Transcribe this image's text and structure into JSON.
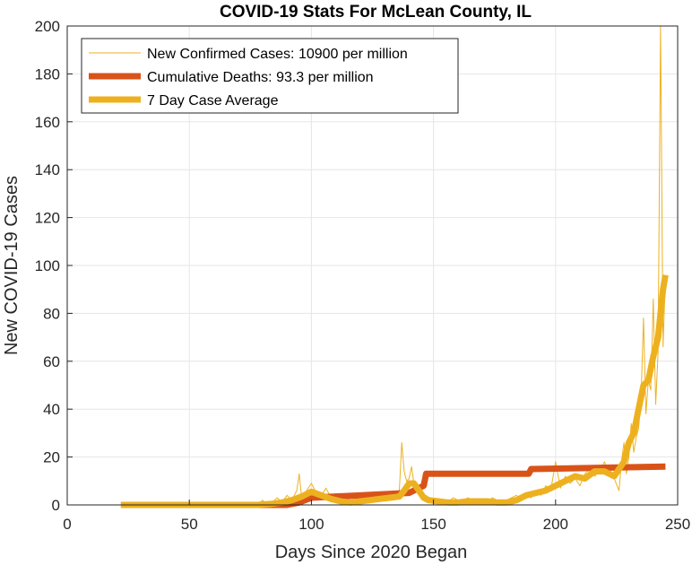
{
  "chart_data": {
    "type": "line",
    "title": "COVID-19 Stats For McLean County, IL",
    "xlabel": "Days Since 2020 Began",
    "ylabel": "New COVID-19 Cases",
    "xlim": [
      0,
      250
    ],
    "ylim": [
      0,
      200
    ],
    "xticks": [
      "0",
      "50",
      "100",
      "150",
      "200",
      "250"
    ],
    "yticks": [
      "0",
      "20",
      "40",
      "60",
      "80",
      "100",
      "120",
      "140",
      "160",
      "180",
      "200"
    ],
    "grid": true,
    "legend_position": "top-left",
    "series": [
      {
        "name": "New Confirmed Cases: 10900 per million",
        "color": "#EDB120",
        "style": "thin",
        "x": [
          22,
          40,
          60,
          78,
          80,
          82,
          84,
          86,
          88,
          90,
          92,
          94,
          95,
          96,
          98,
          100,
          102,
          104,
          106,
          108,
          110,
          112,
          114,
          116,
          118,
          120,
          122,
          124,
          126,
          128,
          130,
          132,
          134,
          136,
          137,
          138,
          139,
          140,
          141,
          142,
          143,
          144,
          145,
          146,
          147,
          148,
          150,
          152,
          154,
          156,
          158,
          160,
          162,
          164,
          166,
          168,
          170,
          172,
          174,
          176,
          178,
          180,
          182,
          184,
          186,
          188,
          190,
          192,
          194,
          196,
          198,
          200,
          202,
          204,
          206,
          208,
          210,
          212,
          214,
          216,
          218,
          220,
          222,
          224,
          226,
          227,
          228,
          229,
          230,
          231,
          232,
          233,
          234,
          235,
          236,
          237,
          238,
          239,
          240,
          241,
          242,
          243,
          244,
          245
        ],
        "y": [
          0,
          0,
          0,
          0,
          2,
          0,
          1,
          3,
          1,
          4,
          2,
          6,
          13,
          3,
          6,
          9,
          5,
          4,
          7,
          3,
          2,
          1,
          2,
          1,
          0,
          2,
          3,
          1,
          2,
          4,
          3,
          2,
          4,
          6,
          26,
          14,
          10,
          11,
          16,
          9,
          7,
          6,
          5,
          4,
          4,
          3,
          2,
          1,
          2,
          1,
          3,
          2,
          1,
          3,
          2,
          1,
          2,
          1,
          3,
          2,
          1,
          2,
          3,
          4,
          2,
          5,
          3,
          6,
          4,
          8,
          6,
          18,
          7,
          12,
          9,
          11,
          8,
          13,
          15,
          12,
          14,
          18,
          13,
          11,
          6,
          18,
          26,
          13,
          20,
          34,
          22,
          28,
          32,
          44,
          78,
          38,
          52,
          48,
          86,
          42,
          64,
          200,
          66,
          96
        ]
      },
      {
        "name": "Cumulative Deaths: 93.3 per million",
        "color": "#D95319",
        "style": "thick",
        "x": [
          22,
          90,
          95,
          100,
          140,
          146,
          147,
          189,
          190,
          245
        ],
        "y": [
          0,
          0,
          1,
          3,
          5,
          8,
          13,
          13,
          15,
          16
        ]
      },
      {
        "name": "7 Day Case Average",
        "color": "#EDB120",
        "style": "thick",
        "x": [
          22,
          78,
          84,
          88,
          92,
          96,
          100,
          104,
          108,
          112,
          116,
          120,
          124,
          128,
          132,
          136,
          138,
          140,
          142,
          144,
          146,
          148,
          152,
          156,
          160,
          164,
          168,
          172,
          176,
          180,
          184,
          188,
          192,
          196,
          200,
          204,
          208,
          212,
          216,
          220,
          224,
          228,
          230,
          232,
          234,
          236,
          238,
          240,
          242,
          243,
          244,
          245
        ],
        "y": [
          0,
          0,
          0.5,
          1,
          2,
          3.5,
          5.5,
          4,
          2.5,
          1.5,
          1,
          1.5,
          2,
          2.5,
          3,
          3.5,
          6,
          9,
          9,
          6,
          3,
          2,
          1.5,
          1,
          1,
          1.5,
          1.5,
          1.5,
          1,
          1,
          2,
          4,
          5,
          6,
          8,
          10,
          12,
          11,
          14,
          14,
          12,
          18,
          26,
          30,
          40,
          50,
          52,
          62,
          70,
          80,
          90,
          96
        ]
      }
    ]
  }
}
